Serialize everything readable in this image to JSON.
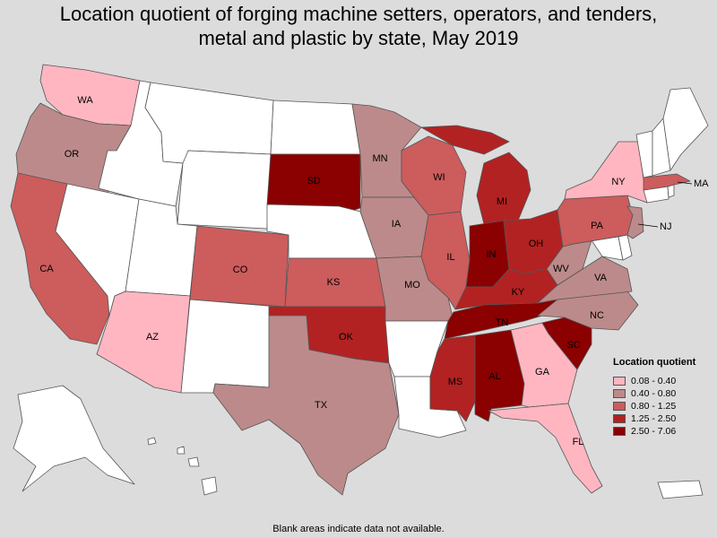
{
  "title_line1": "Location quotient of forging machine setters, operators, and tenders,",
  "title_line2": "metal and plastic by state, May 2019",
  "legend": {
    "title": "Location quotient",
    "classes": [
      {
        "range": "0.08 - 0.40",
        "color": "#ffb6c1"
      },
      {
        "range": "0.40 - 0.80",
        "color": "#bc8a8a"
      },
      {
        "range": "0.80 - 1.25",
        "color": "#cd5c5c"
      },
      {
        "range": "1.25 - 2.50",
        "color": "#b22222"
      },
      {
        "range": "2.50 - 7.06",
        "color": "#8b0000"
      }
    ]
  },
  "no_data_color": "#ffffff",
  "states": [
    {
      "abbr": "WA",
      "class": 0
    },
    {
      "abbr": "OR",
      "class": 1
    },
    {
      "abbr": "CA",
      "class": 2
    },
    {
      "abbr": "AZ",
      "class": 0
    },
    {
      "abbr": "CO",
      "class": 2
    },
    {
      "abbr": "SD",
      "class": 4
    },
    {
      "abbr": "KS",
      "class": 2
    },
    {
      "abbr": "OK",
      "class": 3
    },
    {
      "abbr": "TX",
      "class": 1
    },
    {
      "abbr": "MN",
      "class": 1
    },
    {
      "abbr": "IA",
      "class": 1
    },
    {
      "abbr": "MO",
      "class": 1
    },
    {
      "abbr": "WI",
      "class": 2
    },
    {
      "abbr": "IL",
      "class": 2
    },
    {
      "abbr": "MI",
      "class": 3
    },
    {
      "abbr": "IN",
      "class": 4
    },
    {
      "abbr": "OH",
      "class": 3
    },
    {
      "abbr": "KY",
      "class": 3
    },
    {
      "abbr": "TN",
      "class": 4
    },
    {
      "abbr": "MS",
      "class": 3
    },
    {
      "abbr": "AL",
      "class": 4
    },
    {
      "abbr": "GA",
      "class": 0
    },
    {
      "abbr": "FL",
      "class": 0
    },
    {
      "abbr": "SC",
      "class": 4
    },
    {
      "abbr": "NC",
      "class": 1
    },
    {
      "abbr": "VA",
      "class": 1
    },
    {
      "abbr": "WV",
      "class": 1
    },
    {
      "abbr": "PA",
      "class": 2
    },
    {
      "abbr": "NY",
      "class": 0
    },
    {
      "abbr": "NJ",
      "class": 1
    },
    {
      "abbr": "MA",
      "class": 2
    },
    {
      "abbr": "ID",
      "class": null
    },
    {
      "abbr": "MT",
      "class": null
    },
    {
      "abbr": "WY",
      "class": null
    },
    {
      "abbr": "NV",
      "class": null
    },
    {
      "abbr": "UT",
      "class": null
    },
    {
      "abbr": "NM",
      "class": null
    },
    {
      "abbr": "ND",
      "class": null
    },
    {
      "abbr": "NE",
      "class": null
    },
    {
      "abbr": "AR",
      "class": null
    },
    {
      "abbr": "LA",
      "class": null
    },
    {
      "abbr": "ME",
      "class": null
    },
    {
      "abbr": "NH",
      "class": null
    },
    {
      "abbr": "VT",
      "class": null
    },
    {
      "abbr": "CT",
      "class": null
    },
    {
      "abbr": "RI",
      "class": null
    },
    {
      "abbr": "DE",
      "class": null
    },
    {
      "abbr": "MD",
      "class": null
    },
    {
      "abbr": "AK",
      "class": null
    },
    {
      "abbr": "HI",
      "class": null
    },
    {
      "abbr": "PR",
      "class": null
    }
  ],
  "footnote": "Blank areas indicate data not available."
}
